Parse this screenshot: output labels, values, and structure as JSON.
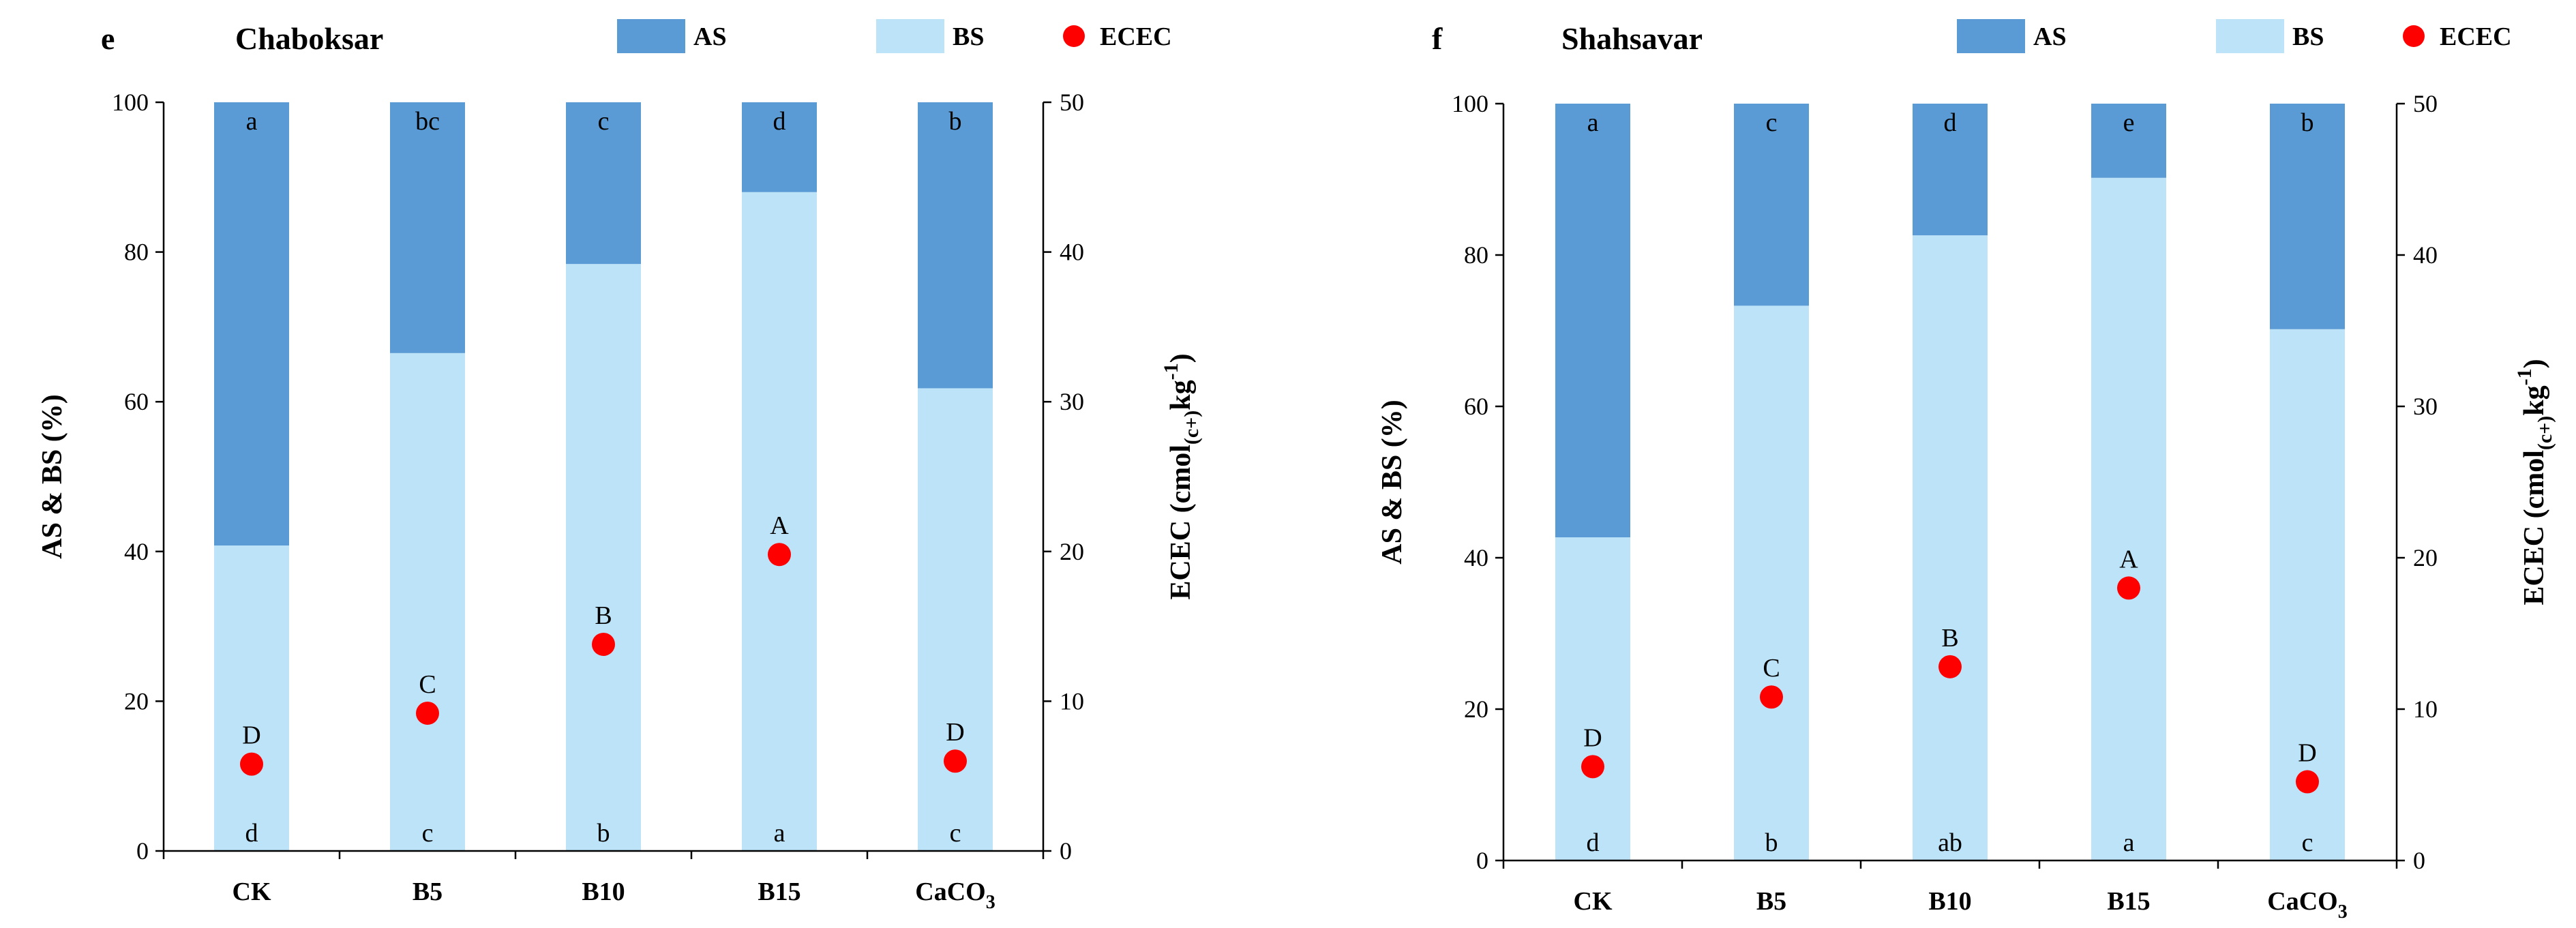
{
  "chart_data": [
    {
      "type": "bar",
      "panel": "e",
      "title": "Chaboksar",
      "categories": [
        "CK",
        "B5",
        "B10",
        "B15",
        "CaCO3"
      ],
      "category_labels": [
        {
          "main": "CK",
          "sub": ""
        },
        {
          "main": "B5",
          "sub": ""
        },
        {
          "main": "B10",
          "sub": ""
        },
        {
          "main": "B15",
          "sub": ""
        },
        {
          "main": "CaCO",
          "sub": "3"
        }
      ],
      "ylabel": "AS & BS (%)",
      "y2label": {
        "prefix": "ECEC (cmol",
        "sub": "(c+)",
        "mid": "kg",
        "sup": "-1",
        "suffix": ")"
      },
      "ylim": [
        0,
        100
      ],
      "y2lim": [
        0,
        50
      ],
      "yticks": [
        0,
        20,
        40,
        60,
        80,
        100
      ],
      "y2ticks": [
        0,
        10,
        20,
        30,
        40,
        50
      ],
      "legend": [
        "AS",
        "BS",
        "ECEC"
      ],
      "colors": {
        "AS": "#5b9bd5",
        "BS": "#bde3f9",
        "ECEC": "#ff0000"
      },
      "series": [
        {
          "name": "BS",
          "values": [
            40.8,
            66.5,
            78.4,
            88.0,
            61.8
          ],
          "letters": [
            "d",
            "c",
            "b",
            "a",
            "c"
          ]
        },
        {
          "name": "AS",
          "values": [
            59.2,
            33.5,
            21.6,
            12.0,
            38.2
          ],
          "letters": [
            "a",
            "bc",
            "c",
            "d",
            "b"
          ]
        },
        {
          "name": "ECEC",
          "axis": "right",
          "values": [
            5.8,
            9.2,
            13.8,
            19.8,
            6.0
          ],
          "letters": [
            "D",
            "C",
            "B",
            "A",
            "D"
          ]
        }
      ]
    },
    {
      "type": "bar",
      "panel": "f",
      "title": "Shahsavar",
      "categories": [
        "CK",
        "B5",
        "B10",
        "B15",
        "CaCO3"
      ],
      "category_labels": [
        {
          "main": "CK",
          "sub": ""
        },
        {
          "main": "B5",
          "sub": ""
        },
        {
          "main": "B10",
          "sub": ""
        },
        {
          "main": "B15",
          "sub": ""
        },
        {
          "main": "CaCO",
          "sub": "3"
        }
      ],
      "ylabel": "AS & BS (%)",
      "y2label": {
        "prefix": "ECEC (cmol",
        "sub": "(c+)",
        "mid": "kg",
        "sup": "-1",
        "suffix": ")"
      },
      "ylim": [
        0,
        100
      ],
      "y2lim": [
        0,
        50
      ],
      "yticks": [
        0,
        20,
        40,
        60,
        80,
        100
      ],
      "y2ticks": [
        0,
        10,
        20,
        30,
        40,
        50
      ],
      "legend": [
        "AS",
        "BS",
        "ECEC"
      ],
      "colors": {
        "AS": "#5b9bd5",
        "BS": "#bde3f9",
        "ECEC": "#ff0000"
      },
      "series": [
        {
          "name": "BS",
          "values": [
            42.7,
            73.3,
            82.6,
            90.2,
            70.2
          ],
          "letters": [
            "d",
            "b",
            "ab",
            "a",
            "c"
          ]
        },
        {
          "name": "AS",
          "values": [
            57.3,
            26.7,
            17.4,
            9.8,
            29.8
          ],
          "letters": [
            "a",
            "c",
            "d",
            "e",
            "b"
          ]
        },
        {
          "name": "ECEC",
          "axis": "right",
          "values": [
            6.2,
            10.8,
            12.8,
            18.0,
            5.2
          ],
          "letters": [
            "D",
            "C",
            "B",
            "A",
            "D"
          ]
        }
      ]
    }
  ]
}
